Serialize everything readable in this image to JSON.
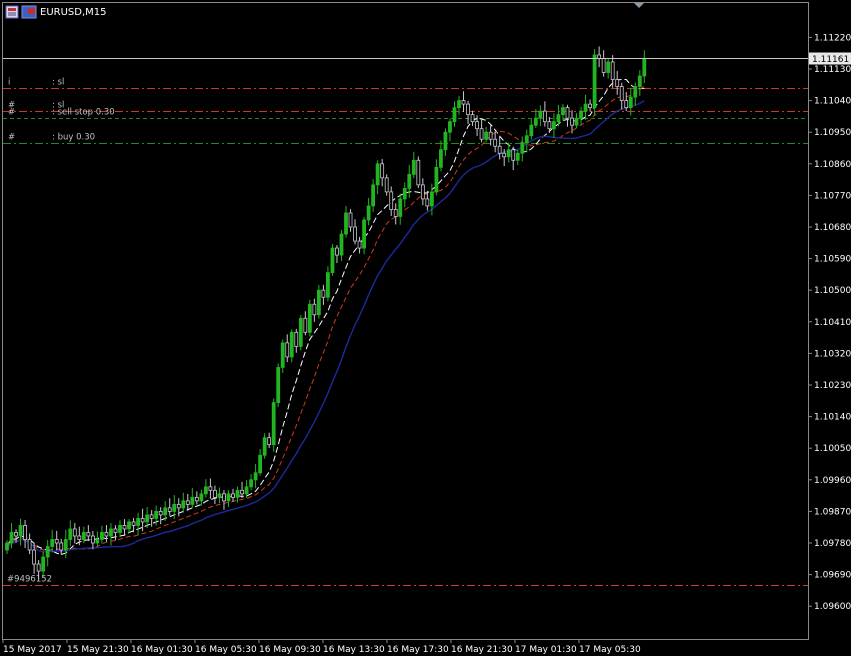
{
  "window": {
    "symbol_title": "EURUSD,M15",
    "icon_names": [
      "chart-window-icon",
      "flag-icon"
    ]
  },
  "chart_data": {
    "type": "candlestick",
    "symbol": "EURUSD",
    "timeframe": "M15",
    "current_price": "1.11161",
    "ylim": [
      1.0955,
      1.1117
    ],
    "y_ticks": [
      "1.11130",
      "1.11040",
      "1.10950",
      "1.10860",
      "1.10770",
      "1.10680",
      "1.10590",
      "1.10500",
      "1.10410",
      "1.10320",
      "1.10230",
      "1.10140",
      "1.10050",
      "1.09960",
      "1.09870",
      "1.09780",
      "1.09690",
      "1.09600"
    ],
    "y_ticks_partial_top": "1.11220",
    "x_ticks": [
      "15 May 2017",
      "15 May 21:30",
      "16 May 01:30",
      "16 May 05:30",
      "16 May 09:30",
      "16 May 13:30",
      "16 May 17:30",
      "16 May 21:30",
      "17 May 01:30",
      "17 May 05:30"
    ],
    "trade_levels": [
      {
        "label": "sl",
        "price": 1.11075,
        "style": "dashdot",
        "color": "#c83c1e",
        "marker": "i"
      },
      {
        "label": "sl",
        "price": 1.1101,
        "style": "dashdot",
        "color": "#c83c1e",
        "marker": "#"
      },
      {
        "label": "sell stop 0.30",
        "price": 1.1099,
        "style": "dashed",
        "color": "#1e8c1e",
        "marker": "#"
      },
      {
        "label": "buy 0.30",
        "price": 1.1092,
        "style": "dashdot",
        "color": "#1e8c1e",
        "marker": "#"
      },
      {
        "label": "#9496152",
        "price": 1.0966,
        "style": "dashdot",
        "color": "#c83c1e",
        "marker": ""
      }
    ],
    "closes": [
      1.0978,
      1.0981,
      1.098,
      1.0983,
      1.0979,
      1.0976,
      1.0972,
      1.097,
      1.0974,
      1.0977,
      1.0979,
      1.0978,
      1.0976,
      1.0979,
      1.0982,
      1.098,
      1.0979,
      1.0981,
      1.098,
      1.0978,
      1.0979,
      1.0981,
      1.098,
      1.0982,
      1.0981,
      1.0983,
      1.0982,
      1.0984,
      1.0983,
      1.0985,
      1.0984,
      1.0986,
      1.0985,
      1.0987,
      1.0986,
      1.0988,
      1.0987,
      1.0989,
      1.0988,
      1.099,
      1.0989,
      1.0991,
      1.099,
      1.0992,
      1.0994,
      1.0993,
      1.0991,
      1.0992,
      1.099,
      1.0992,
      1.0991,
      1.0993,
      1.0992,
      1.0994,
      1.0996,
      1.0998,
      1.1003,
      1.1008,
      1.1006,
      1.1018,
      1.1028,
      1.1035,
      1.1031,
      1.1038,
      1.1034,
      1.1042,
      1.1038,
      1.1046,
      1.1043,
      1.105,
      1.1048,
      1.1055,
      1.1062,
      1.106,
      1.1066,
      1.1072,
      1.1068,
      1.1064,
      1.1062,
      1.107,
      1.1074,
      1.108,
      1.1086,
      1.1082,
      1.1078,
      1.1073,
      1.1071,
      1.1076,
      1.1079,
      1.1083,
      1.1087,
      1.108,
      1.1076,
      1.1074,
      1.1078,
      1.1085,
      1.109,
      1.1095,
      1.1098,
      1.1102,
      1.1104,
      1.1103,
      1.11,
      1.1098,
      1.1096,
      1.1093,
      1.1095,
      1.1093,
      1.1091,
      1.1089,
      1.1088,
      1.109,
      1.1087,
      1.1089,
      1.1092,
      1.1094,
      1.1097,
      1.1099,
      1.1101,
      1.1098,
      1.1096,
      1.1098,
      1.11,
      1.1102,
      1.1099,
      1.1097,
      1.1099,
      1.1101,
      1.1103,
      1.1102,
      1.1117,
      1.1116,
      1.1112,
      1.1115,
      1.111,
      1.1108,
      1.1104,
      1.1102,
      1.1105,
      1.1108,
      1.1111,
      1.1116
    ]
  }
}
